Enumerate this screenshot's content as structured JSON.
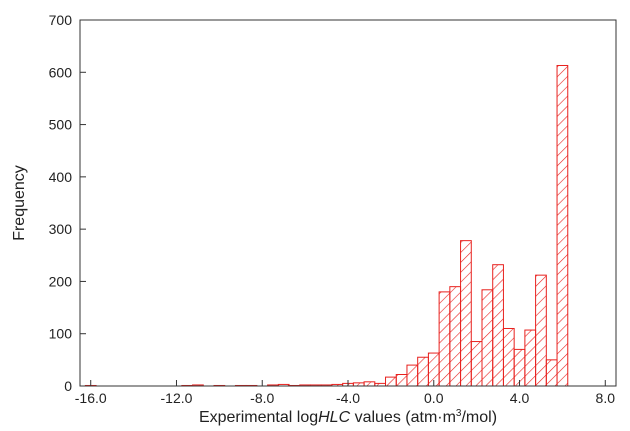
{
  "chart_data": {
    "type": "bar",
    "bar_style": "hatched",
    "bar_color": "#e8211e",
    "bin_width": 0.5,
    "xlabel": {
      "prefix": "Experimental log",
      "italic": "HLC",
      "suffix": " values (atm·m",
      "sup": "3",
      "end": "/mol)"
    },
    "ylabel": "Frequency",
    "xlim": [
      -16.5,
      8.5
    ],
    "ylim": [
      0,
      700
    ],
    "xticks": [
      -16.0,
      -12.0,
      -8.0,
      -4.0,
      0.0,
      4.0,
      8.0
    ],
    "xtick_labels": [
      "-16.0",
      "-12.0",
      "-8.0",
      "-4.0",
      "0.0",
      "4.0",
      "8.0"
    ],
    "yticks": [
      0,
      100,
      200,
      300,
      400,
      500,
      600,
      700
    ],
    "ytick_labels": [
      "0",
      "100",
      "200",
      "300",
      "400",
      "500",
      "600",
      "700"
    ],
    "bins": [
      {
        "x": -16.0,
        "count": 1
      },
      {
        "x": -11.5,
        "count": 1
      },
      {
        "x": -11.0,
        "count": 2
      },
      {
        "x": -10.0,
        "count": 1
      },
      {
        "x": -9.0,
        "count": 1
      },
      {
        "x": -8.5,
        "count": 1
      },
      {
        "x": -7.5,
        "count": 2
      },
      {
        "x": -7.0,
        "count": 3
      },
      {
        "x": -6.5,
        "count": 1
      },
      {
        "x": -6.0,
        "count": 2
      },
      {
        "x": -5.5,
        "count": 2
      },
      {
        "x": -5.0,
        "count": 2
      },
      {
        "x": -4.5,
        "count": 3
      },
      {
        "x": -4.0,
        "count": 5
      },
      {
        "x": -3.5,
        "count": 6
      },
      {
        "x": -3.0,
        "count": 8
      },
      {
        "x": -2.5,
        "count": 5
      },
      {
        "x": -2.0,
        "count": 17
      },
      {
        "x": -1.5,
        "count": 22
      },
      {
        "x": -1.0,
        "count": 40
      },
      {
        "x": -0.5,
        "count": 55
      },
      {
        "x": 0.0,
        "count": 63
      },
      {
        "x": 0.5,
        "count": 180
      },
      {
        "x": 1.0,
        "count": 190
      },
      {
        "x": 1.5,
        "count": 278
      },
      {
        "x": 2.0,
        "count": 85
      },
      {
        "x": 2.5,
        "count": 184
      },
      {
        "x": 3.0,
        "count": 232
      },
      {
        "x": 3.5,
        "count": 110
      },
      {
        "x": 4.0,
        "count": 70
      },
      {
        "x": 4.5,
        "count": 107
      },
      {
        "x": 5.0,
        "count": 212
      },
      {
        "x": 5.5,
        "count": 50
      },
      {
        "x": 6.0,
        "count": 613
      }
    ]
  }
}
